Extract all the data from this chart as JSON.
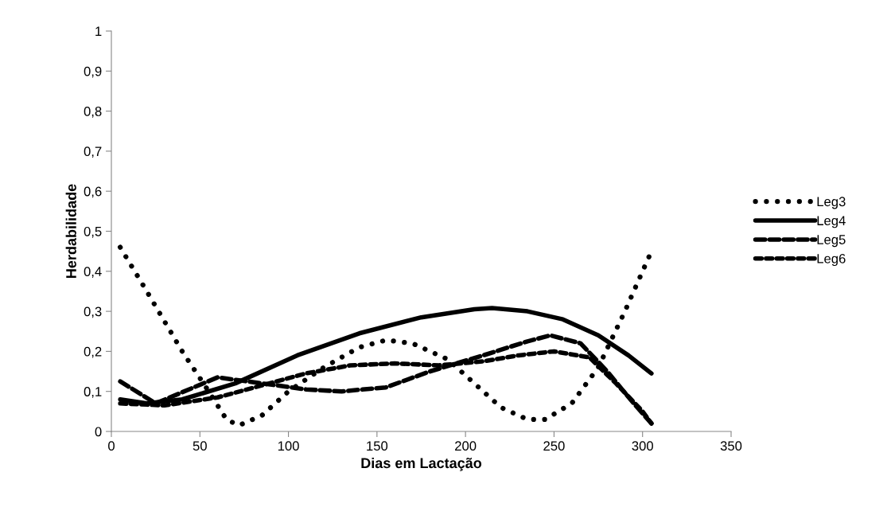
{
  "chart_data": {
    "type": "line",
    "xlabel": "Dias em Lactação",
    "ylabel": "Herdabilidade",
    "xlim": [
      0,
      350
    ],
    "xticks": [
      0,
      50,
      100,
      150,
      200,
      250,
      300,
      350
    ],
    "ylim": [
      0,
      1
    ],
    "yticks": [
      0,
      {
        "value": 0.1,
        "label": "0,1"
      },
      {
        "value": 0.2,
        "label": "0,2"
      },
      {
        "value": 0.3,
        "label": "0,3"
      },
      {
        "value": 0.4,
        "label": "0,4"
      },
      {
        "value": 0.5,
        "label": "0,5"
      },
      {
        "value": 0.6,
        "label": "0,6"
      },
      {
        "value": 0.7,
        "label": "0,7"
      },
      {
        "value": 0.8,
        "label": "0,8"
      },
      {
        "value": 0.9,
        "label": "0,9"
      },
      1
    ],
    "grid": false,
    "legend": "right",
    "marker": "none",
    "series": [
      {
        "name": "Leg3",
        "color": "#000000",
        "line_style": "dotted",
        "x": [
          5,
          20,
          40,
          55,
          65,
          72,
          85,
          100,
          120,
          140,
          155,
          170,
          190,
          205,
          220,
          235,
          245,
          260,
          275,
          290,
          305
        ],
        "values": [
          0.46,
          0.35,
          0.2,
          0.1,
          0.03,
          0.015,
          0.04,
          0.1,
          0.16,
          0.21,
          0.228,
          0.22,
          0.18,
          0.12,
          0.06,
          0.03,
          0.03,
          0.07,
          0.16,
          0.3,
          0.45
        ]
      },
      {
        "name": "Leg4",
        "color": "#000000",
        "line_style": "solid",
        "x": [
          5,
          20,
          40,
          70,
          105,
          140,
          175,
          205,
          215,
          235,
          255,
          275,
          292,
          305
        ],
        "values": [
          0.08,
          0.07,
          0.08,
          0.12,
          0.19,
          0.245,
          0.285,
          0.305,
          0.308,
          0.3,
          0.28,
          0.24,
          0.19,
          0.145
        ]
      },
      {
        "name": "Leg5",
        "color": "#000000",
        "line_style": "dashed",
        "x": [
          5,
          25,
          60,
          85,
          110,
          130,
          155,
          180,
          210,
          235,
          248,
          265,
          280,
          295,
          305
        ],
        "values": [
          0.125,
          0.07,
          0.135,
          0.12,
          0.105,
          0.1,
          0.11,
          0.15,
          0.19,
          0.225,
          0.24,
          0.22,
          0.15,
          0.07,
          0.02
        ]
      },
      {
        "name": "Leg6",
        "color": "#000000",
        "line_style": "dashed",
        "x": [
          5,
          30,
          60,
          85,
          110,
          135,
          160,
          185,
          210,
          230,
          250,
          270,
          285,
          300,
          305
        ],
        "values": [
          0.07,
          0.065,
          0.085,
          0.115,
          0.145,
          0.165,
          0.17,
          0.165,
          0.175,
          0.19,
          0.2,
          0.185,
          0.12,
          0.05,
          0.02
        ]
      }
    ]
  }
}
